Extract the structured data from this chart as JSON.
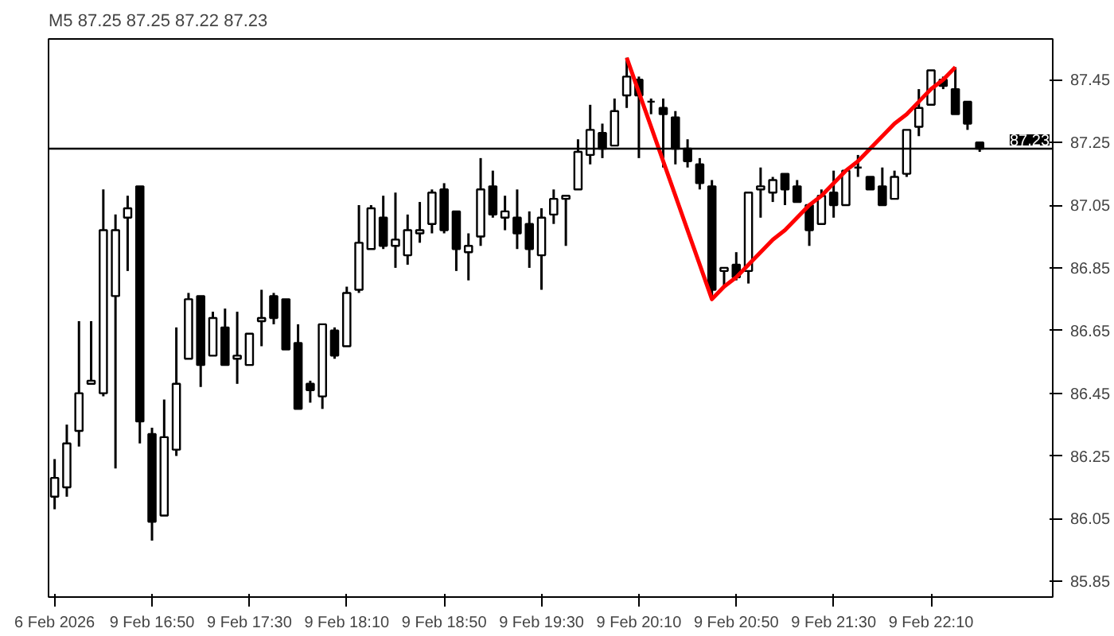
{
  "chart_data": {
    "type": "candlestick",
    "title": "M5  87.25 87.25 87.22 87.23",
    "categories": [
      "6 Feb 2026",
      null,
      null,
      null,
      null,
      null,
      null,
      null,
      "9 Feb 16:50",
      null,
      null,
      null,
      null,
      null,
      null,
      null,
      "9 Feb 17:30",
      null,
      null,
      null,
      null,
      null,
      null,
      null,
      "9 Feb 18:10",
      null,
      null,
      null,
      null,
      null,
      null,
      null,
      "9 Feb 18:50",
      null,
      null,
      null,
      null,
      null,
      null,
      null,
      "9 Feb 19:30",
      null,
      null,
      null,
      null,
      null,
      null,
      null,
      "9 Feb 20:10",
      null,
      null,
      null,
      null,
      null,
      null,
      null,
      "9 Feb 20:50",
      null,
      null,
      null,
      null,
      null,
      null,
      null,
      "9 Feb 21:30",
      null,
      null,
      null,
      null,
      null,
      null,
      null,
      "9 Feb 22:10",
      null,
      null,
      null,
      null
    ],
    "ohlc": [
      [
        86.12,
        86.24,
        86.08,
        86.18
      ],
      [
        86.15,
        86.35,
        86.12,
        86.29
      ],
      [
        86.33,
        86.68,
        86.28,
        86.45
      ],
      [
        86.48,
        86.68,
        86.48,
        86.49
      ],
      [
        86.45,
        87.1,
        86.44,
        86.97
      ],
      [
        86.76,
        87.02,
        86.21,
        86.97
      ],
      [
        87.01,
        87.08,
        86.84,
        87.04
      ],
      [
        87.11,
        87.11,
        86.29,
        86.36
      ],
      [
        86.32,
        86.34,
        85.98,
        86.04
      ],
      [
        86.06,
        86.43,
        86.06,
        86.31
      ],
      [
        86.27,
        86.66,
        86.25,
        86.48
      ],
      [
        86.56,
        86.77,
        86.56,
        86.75
      ],
      [
        86.76,
        86.76,
        86.47,
        86.54
      ],
      [
        86.57,
        86.71,
        86.57,
        86.69
      ],
      [
        86.66,
        86.72,
        86.54,
        86.54
      ],
      [
        86.56,
        86.71,
        86.48,
        86.57
      ],
      [
        86.54,
        86.64,
        86.54,
        86.64
      ],
      [
        86.68,
        86.78,
        86.6,
        86.69
      ],
      [
        86.76,
        86.77,
        86.67,
        86.69
      ],
      [
        86.75,
        86.75,
        86.59,
        86.59
      ],
      [
        86.61,
        86.67,
        86.4,
        86.4
      ],
      [
        86.48,
        86.49,
        86.42,
        86.46
      ],
      [
        86.44,
        86.67,
        86.4,
        86.67
      ],
      [
        86.65,
        86.66,
        86.56,
        86.57
      ],
      [
        86.6,
        86.79,
        86.6,
        86.77
      ],
      [
        86.78,
        87.05,
        86.77,
        86.93
      ],
      [
        86.91,
        87.05,
        86.91,
        87.04
      ],
      [
        87.01,
        87.08,
        86.91,
        86.92
      ],
      [
        86.92,
        87.09,
        86.85,
        86.94
      ],
      [
        86.89,
        87.02,
        86.86,
        86.97
      ],
      [
        86.96,
        87.06,
        86.93,
        86.97
      ],
      [
        86.99,
        87.1,
        86.96,
        87.09
      ],
      [
        87.1,
        87.12,
        86.96,
        86.97
      ],
      [
        87.03,
        87.03,
        86.84,
        86.91
      ],
      [
        86.9,
        86.96,
        86.81,
        86.92
      ],
      [
        86.95,
        87.2,
        86.92,
        87.1
      ],
      [
        87.11,
        87.16,
        87.01,
        87.02
      ],
      [
        87.01,
        87.08,
        86.97,
        87.03
      ],
      [
        87.01,
        87.1,
        86.91,
        86.96
      ],
      [
        86.99,
        87.03,
        86.85,
        86.91
      ],
      [
        86.89,
        87.04,
        86.78,
        87.01
      ],
      [
        87.02,
        87.1,
        86.99,
        87.07
      ],
      [
        87.07,
        87.08,
        86.92,
        87.08
      ],
      [
        87.1,
        87.26,
        87.1,
        87.22
      ],
      [
        87.21,
        87.37,
        87.18,
        87.29
      ],
      [
        87.28,
        87.31,
        87.2,
        87.23
      ],
      [
        87.24,
        87.39,
        87.24,
        87.35
      ],
      [
        87.4,
        87.52,
        87.36,
        87.46
      ],
      [
        87.45,
        87.46,
        87.2,
        87.4
      ],
      [
        87.38,
        87.39,
        87.34,
        87.38
      ],
      [
        87.36,
        87.39,
        87.17,
        87.34
      ],
      [
        87.33,
        87.35,
        87.18,
        87.23
      ],
      [
        87.23,
        87.26,
        87.17,
        87.19
      ],
      [
        87.18,
        87.2,
        87.1,
        87.12
      ],
      [
        87.11,
        87.13,
        86.75,
        86.78
      ],
      [
        86.84,
        86.85,
        86.79,
        86.85
      ],
      [
        86.86,
        86.9,
        86.81,
        86.82
      ],
      [
        86.84,
        87.09,
        86.8,
        87.09
      ],
      [
        87.1,
        87.17,
        87.01,
        87.11
      ],
      [
        87.09,
        87.14,
        87.06,
        87.13
      ],
      [
        87.15,
        87.15,
        87.05,
        87.1
      ],
      [
        87.11,
        87.13,
        87.06,
        87.06
      ],
      [
        87.05,
        87.05,
        86.92,
        86.97
      ],
      [
        86.99,
        87.1,
        86.99,
        87.08
      ],
      [
        87.09,
        87.16,
        87.01,
        87.05
      ],
      [
        87.05,
        87.16,
        87.05,
        87.16
      ],
      [
        87.17,
        87.21,
        87.14,
        87.17
      ],
      [
        87.14,
        87.14,
        87.1,
        87.1
      ],
      [
        87.11,
        87.17,
        87.05,
        87.05
      ],
      [
        87.07,
        87.16,
        87.07,
        87.14
      ],
      [
        87.15,
        87.29,
        87.14,
        87.29
      ],
      [
        87.3,
        87.42,
        87.27,
        87.36
      ],
      [
        87.37,
        87.48,
        87.37,
        87.48
      ],
      [
        87.45,
        87.46,
        87.42,
        87.43
      ],
      [
        87.42,
        87.49,
        87.34,
        87.34
      ],
      [
        87.38,
        87.38,
        87.29,
        87.31
      ],
      [
        87.25,
        87.25,
        87.22,
        87.23
      ]
    ],
    "series": [
      {
        "type": "line",
        "color": "#ff0000",
        "values": [
          null,
          null,
          null,
          null,
          null,
          null,
          null,
          null,
          null,
          null,
          null,
          null,
          null,
          null,
          null,
          null,
          null,
          null,
          null,
          null,
          null,
          null,
          null,
          null,
          null,
          null,
          null,
          null,
          null,
          null,
          null,
          null,
          null,
          null,
          null,
          null,
          null,
          null,
          null,
          null,
          null,
          null,
          null,
          null,
          null,
          null,
          null,
          87.52,
          87.41,
          87.3,
          87.19,
          87.08,
          86.97,
          86.86,
          86.75,
          86.79,
          86.82,
          86.86,
          86.9,
          86.94,
          86.97,
          87.01,
          87.05,
          87.08,
          87.12,
          87.16,
          87.19,
          87.23,
          87.27,
          87.31,
          87.34,
          87.38,
          87.42,
          87.45,
          87.49,
          null,
          null
        ]
      }
    ],
    "ref_lines": [
      {
        "axis": "y",
        "value": 87.23,
        "label": "87.23",
        "color": "#000000"
      }
    ],
    "ylim": [
      85.8,
      87.58
    ],
    "yticks": [
      85.85,
      86.05,
      86.25,
      86.45,
      86.65,
      86.85,
      87.05,
      87.25,
      87.45
    ]
  }
}
